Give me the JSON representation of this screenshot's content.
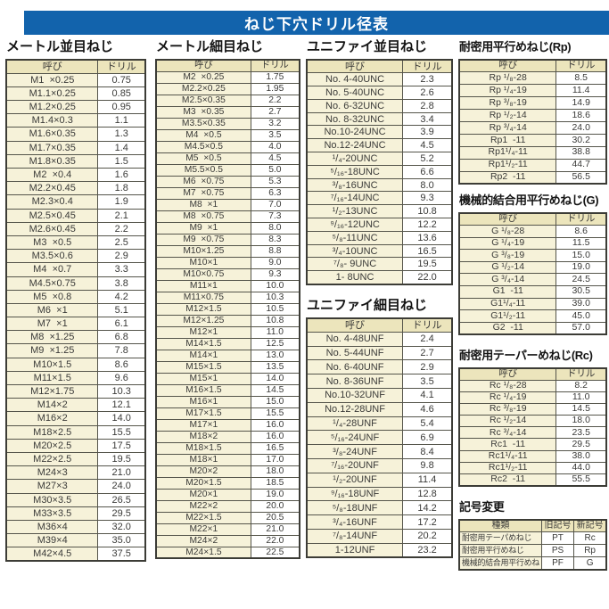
{
  "page_title": "ねじ下穴ドリル径表",
  "colors": {
    "title_bar_bg": "#1263ac",
    "title_bar_text": "#ffffff",
    "header_cell_bg": "#ece5bc",
    "name_cell_bg": "#f6f2d9",
    "value_cell_bg": "#ffffff",
    "border": "#55554b"
  },
  "column_headers": {
    "name": "呼び",
    "drill": "ドリル"
  },
  "columns": [
    {
      "tables": [
        {
          "id": "metric-coarse",
          "title": "メートル並目ねじ",
          "rows": [
            [
              "M1  ×0.25",
              "0.75"
            ],
            [
              "M1.1×0.25",
              "0.85"
            ],
            [
              "M1.2×0.25",
              "0.95"
            ],
            [
              "M1.4×0.3",
              "1.1"
            ],
            [
              "M1.6×0.35",
              "1.3"
            ],
            [
              "M1.7×0.35",
              "1.4"
            ],
            [
              "M1.8×0.35",
              "1.5"
            ],
            [
              "M2  ×0.4",
              "1.6"
            ],
            [
              "M2.2×0.45",
              "1.8"
            ],
            [
              "M2.3×0.4",
              "1.9"
            ],
            [
              "M2.5×0.45",
              "2.1"
            ],
            [
              "M2.6×0.45",
              "2.2"
            ],
            [
              "M3  ×0.5",
              "2.5"
            ],
            [
              "M3.5×0.6",
              "2.9"
            ],
            [
              "M4  ×0.7",
              "3.3"
            ],
            [
              "M4.5×0.75",
              "3.8"
            ],
            [
              "M5  ×0.8",
              "4.2"
            ],
            [
              "M6  ×1",
              "5.1"
            ],
            [
              "M7  ×1",
              "6.1"
            ],
            [
              "M8  ×1.25",
              "6.8"
            ],
            [
              "M9  ×1.25",
              "7.8"
            ],
            [
              "M10×1.5",
              "8.6"
            ],
            [
              "M11×1.5",
              "9.6"
            ],
            [
              "M12×1.75",
              "10.3"
            ],
            [
              "M14×2",
              "12.1"
            ],
            [
              "M16×2",
              "14.0"
            ],
            [
              "M18×2.5",
              "15.5"
            ],
            [
              "M20×2.5",
              "17.5"
            ],
            [
              "M22×2.5",
              "19.5"
            ],
            [
              "M24×3",
              "21.0"
            ],
            [
              "M27×3",
              "24.0"
            ],
            [
              "M30×3.5",
              "26.5"
            ],
            [
              "M33×3.5",
              "29.5"
            ],
            [
              "M36×4",
              "32.0"
            ],
            [
              "M39×4",
              "35.0"
            ],
            [
              "M42×4.5",
              "37.5"
            ]
          ]
        }
      ]
    },
    {
      "tables": [
        {
          "id": "metric-fine",
          "title": "メートル細目ねじ",
          "rows": [
            [
              "M2  ×0.25",
              "1.75"
            ],
            [
              "M2.2×0.25",
              "1.95"
            ],
            [
              "M2.5×0.35",
              "2.2"
            ],
            [
              "M3  ×0.35",
              "2.7"
            ],
            [
              "M3.5×0.35",
              "3.2"
            ],
            [
              "M4  ×0.5",
              "3.5"
            ],
            [
              "M4.5×0.5",
              "4.0"
            ],
            [
              "M5  ×0.5",
              "4.5"
            ],
            [
              "M5.5×0.5",
              "5.0"
            ],
            [
              "M6  ×0.75",
              "5.3"
            ],
            [
              "M7  ×0.75",
              "6.3"
            ],
            [
              "M8  ×1",
              "7.0"
            ],
            [
              "M8  ×0.75",
              "7.3"
            ],
            [
              "M9  ×1",
              "8.0"
            ],
            [
              "M9  ×0.75",
              "8.3"
            ],
            [
              "M10×1.25",
              "8.8"
            ],
            [
              "M10×1",
              "9.0"
            ],
            [
              "M10×0.75",
              "9.3"
            ],
            [
              "M11×1",
              "10.0"
            ],
            [
              "M11×0.75",
              "10.3"
            ],
            [
              "M12×1.5",
              "10.5"
            ],
            [
              "M12×1.25",
              "10.8"
            ],
            [
              "M12×1",
              "11.0"
            ],
            [
              "M14×1.5",
              "12.5"
            ],
            [
              "M14×1",
              "13.0"
            ],
            [
              "M15×1.5",
              "13.5"
            ],
            [
              "M15×1",
              "14.0"
            ],
            [
              "M16×1.5",
              "14.5"
            ],
            [
              "M16×1",
              "15.0"
            ],
            [
              "M17×1.5",
              "15.5"
            ],
            [
              "M17×1",
              "16.0"
            ],
            [
              "M18×2",
              "16.0"
            ],
            [
              "M18×1.5",
              "16.5"
            ],
            [
              "M18×1",
              "17.0"
            ],
            [
              "M20×2",
              "18.0"
            ],
            [
              "M20×1.5",
              "18.5"
            ],
            [
              "M20×1",
              "19.0"
            ],
            [
              "M22×2",
              "20.0"
            ],
            [
              "M22×1.5",
              "20.5"
            ],
            [
              "M22×1",
              "21.0"
            ],
            [
              "M24×2",
              "22.0"
            ],
            [
              "M24×1.5",
              "22.5"
            ]
          ]
        }
      ]
    },
    {
      "tables": [
        {
          "id": "unified-coarse",
          "title": "ユニファイ並目ねじ",
          "rows": [
            [
              "No. 4-40UNC",
              "2.3"
            ],
            [
              "No. 5-40UNC",
              "2.6"
            ],
            [
              "No. 6-32UNC",
              "2.8"
            ],
            [
              "No. 8-32UNC",
              "3.4"
            ],
            [
              "No.10-24UNC",
              "3.9"
            ],
            [
              "No.12-24UNC",
              "4.5"
            ],
            [
              "¹/₄-20UNC",
              "5.2"
            ],
            [
              "⁵/₁₆-18UNC",
              "6.6"
            ],
            [
              "³/₈-16UNC",
              "8.0"
            ],
            [
              "⁷/₁₆-14UNC",
              "9.3"
            ],
            [
              "¹/₂-13UNC",
              "10.8"
            ],
            [
              "⁹/₁₆-12UNC",
              "12.2"
            ],
            [
              "⁵/₈-11UNC",
              "13.6"
            ],
            [
              "³/₄-10UNC",
              "16.5"
            ],
            [
              "⁷/₈- 9UNC",
              "19.5"
            ],
            [
              "1- 8UNC",
              "22.0"
            ]
          ]
        },
        {
          "id": "unified-fine",
          "title": "ユニファイ細目ねじ",
          "rows": [
            [
              "No. 4-48UNF",
              "2.4"
            ],
            [
              "No. 5-44UNF",
              "2.7"
            ],
            [
              "No. 6-40UNF",
              "2.9"
            ],
            [
              "No. 8-36UNF",
              "3.5"
            ],
            [
              "No.10-32UNF",
              "4.1"
            ],
            [
              "No.12-28UNF",
              "4.6"
            ],
            [
              "¹/₄-28UNF",
              "5.4"
            ],
            [
              "⁵/₁₆-24UNF",
              "6.9"
            ],
            [
              "³/₈-24UNF",
              "8.4"
            ],
            [
              "⁷/₁₆-20UNF",
              "9.8"
            ],
            [
              "¹/₂-20UNF",
              "11.4"
            ],
            [
              "⁹/₁₆-18UNF",
              "12.8"
            ],
            [
              "⁵/₈-18UNF",
              "14.2"
            ],
            [
              "³/₄-16UNF",
              "17.2"
            ],
            [
              "⁷/₈-14UNF",
              "20.2"
            ],
            [
              "1-12UNF",
              "23.2"
            ]
          ]
        }
      ]
    },
    {
      "tables": [
        {
          "id": "rp",
          "title": "耐密用平行めねじ(Rp)",
          "rows": [
            [
              "Rp ¹/₈-28",
              "8.5"
            ],
            [
              "Rp ¹/₄-19",
              "11.4"
            ],
            [
              "Rp ³/₈-19",
              "14.9"
            ],
            [
              "Rp ¹/₂-14",
              "18.6"
            ],
            [
              "Rp ³/₄-14",
              "24.0"
            ],
            [
              "Rp1  -11",
              "30.2"
            ],
            [
              "Rp1¹/₄-11",
              "38.8"
            ],
            [
              "Rp1¹/₂-11",
              "44.7"
            ],
            [
              "Rp2  -11",
              "56.5"
            ]
          ]
        },
        {
          "id": "g",
          "title": "機械的結合用平行めねじ(G)",
          "rows": [
            [
              "G ¹/₈-28",
              "8.6"
            ],
            [
              "G ¹/₄-19",
              "11.5"
            ],
            [
              "G ³/₈-19",
              "15.0"
            ],
            [
              "G ¹/₂-14",
              "19.0"
            ],
            [
              "G ³/₄-14",
              "24.5"
            ],
            [
              "G1  -11",
              "30.5"
            ],
            [
              "G1¹/₄-11",
              "39.0"
            ],
            [
              "G1¹/₂-11",
              "45.0"
            ],
            [
              "G2  -11",
              "57.0"
            ]
          ]
        },
        {
          "id": "rc",
          "title": "耐密用テーパーめねじ(Rc)",
          "rows": [
            [
              "Rc ¹/₈-28",
              "8.2"
            ],
            [
              "Rc ¹/₄-19",
              "11.0"
            ],
            [
              "Rc ³/₈-19",
              "14.5"
            ],
            [
              "Rc ¹/₂-14",
              "18.0"
            ],
            [
              "Rc ³/₄-14",
              "23.5"
            ],
            [
              "Rc1  -11",
              "29.5"
            ],
            [
              "Rc1¹/₄-11",
              "38.0"
            ],
            [
              "Rc1¹/₂-11",
              "44.0"
            ],
            [
              "Rc2  -11",
              "55.5"
            ]
          ]
        },
        {
          "id": "symbol-change",
          "title": "記号変更",
          "headers": [
            "種類",
            "旧記号",
            "新記号"
          ],
          "rows": [
            [
              "耐密用テーパめねじ",
              "PT",
              "Rc"
            ],
            [
              "耐密用平行めねじ",
              "PS",
              "Rp"
            ],
            [
              "機械的結合用平行めねじ",
              "PF",
              "G"
            ]
          ]
        }
      ]
    }
  ]
}
